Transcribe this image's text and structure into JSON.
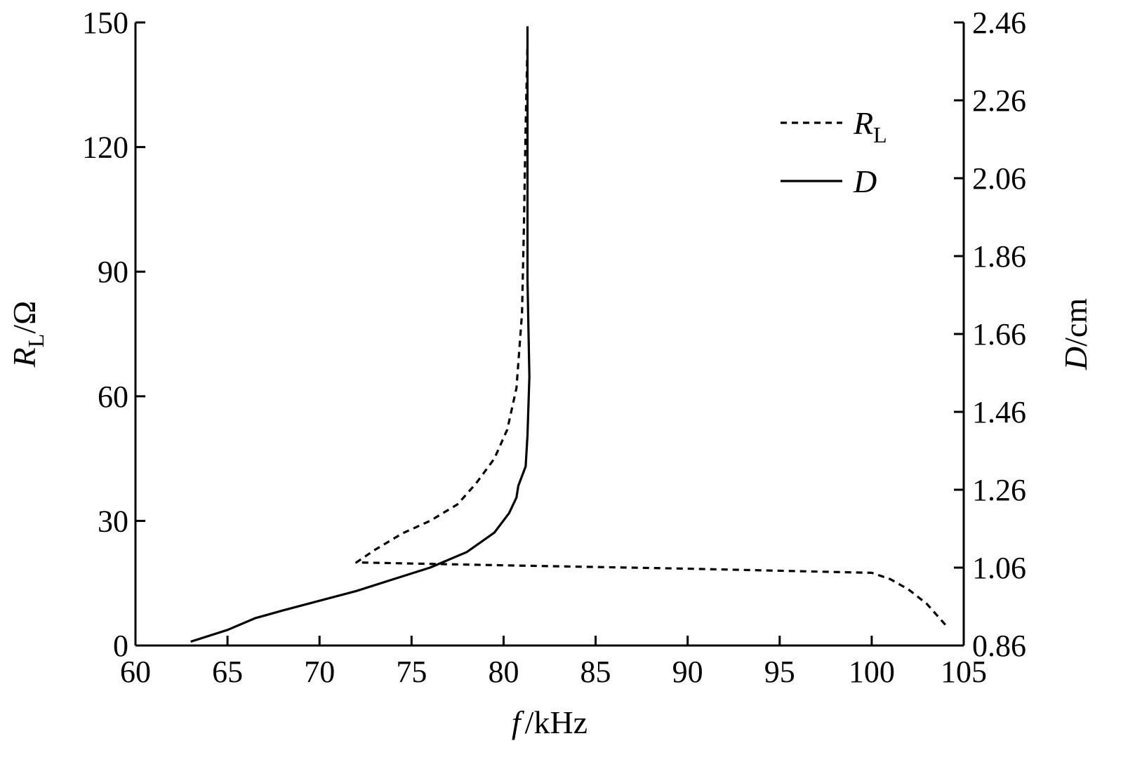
{
  "chart_data": {
    "type": "line",
    "title": "",
    "xlabel": {
      "symbol": "f",
      "unit": "/kHz"
    },
    "ylabel_left": {
      "symbol": "R",
      "subscript": "L",
      "unit": "/Ω"
    },
    "ylabel_right": {
      "symbol": "D",
      "unit": "/cm"
    },
    "xlim": [
      60,
      105
    ],
    "ylim_left": [
      0,
      150
    ],
    "ylim_right": [
      0.86,
      2.46
    ],
    "x_ticks": [
      "60",
      "65",
      "70",
      "75",
      "80",
      "85",
      "90",
      "95",
      "100",
      "105"
    ],
    "y_left_ticks": [
      "0",
      "30",
      "60",
      "90",
      "120",
      "150"
    ],
    "y_right_ticks": [
      "0.86",
      "1.06",
      "1.26",
      "1.46",
      "1.66",
      "1.86",
      "2.06",
      "2.26",
      "2.46"
    ],
    "grid": false,
    "legend_position": "top-right",
    "series": [
      {
        "name": "R",
        "subscript": "L",
        "axis": "left",
        "style": "dashed",
        "color": "#000000",
        "points": [
          [
            104,
            5
          ],
          [
            103,
            10
          ],
          [
            102,
            13.5
          ],
          [
            101,
            16
          ],
          [
            100,
            17.5
          ],
          [
            90,
            18.5
          ],
          [
            80,
            19.3
          ],
          [
            72,
            20
          ],
          [
            73,
            23
          ],
          [
            74.5,
            27
          ],
          [
            76,
            30
          ],
          [
            77.5,
            34
          ],
          [
            78.5,
            39
          ],
          [
            79.5,
            45
          ],
          [
            80.2,
            52
          ],
          [
            80.7,
            62
          ],
          [
            81.0,
            80
          ],
          [
            81.1,
            100
          ],
          [
            81.2,
            125
          ],
          [
            81.3,
            145
          ]
        ]
      },
      {
        "name": "D",
        "axis": "right",
        "style": "solid",
        "color": "#000000",
        "points": [
          [
            63,
            0.87
          ],
          [
            65,
            0.9
          ],
          [
            66.5,
            0.93
          ],
          [
            68,
            0.95
          ],
          [
            70,
            0.975
          ],
          [
            72,
            1.0
          ],
          [
            74,
            1.03
          ],
          [
            76,
            1.06
          ],
          [
            78,
            1.1
          ],
          [
            79.5,
            1.15
          ],
          [
            80.3,
            1.2
          ],
          [
            80.7,
            1.24
          ],
          [
            80.8,
            1.27
          ],
          [
            81.2,
            1.32
          ],
          [
            81.3,
            1.4
          ],
          [
            81.4,
            1.55
          ],
          [
            81.3,
            1.8
          ],
          [
            81.3,
            2.1
          ],
          [
            81.3,
            2.45
          ]
        ]
      }
    ]
  }
}
